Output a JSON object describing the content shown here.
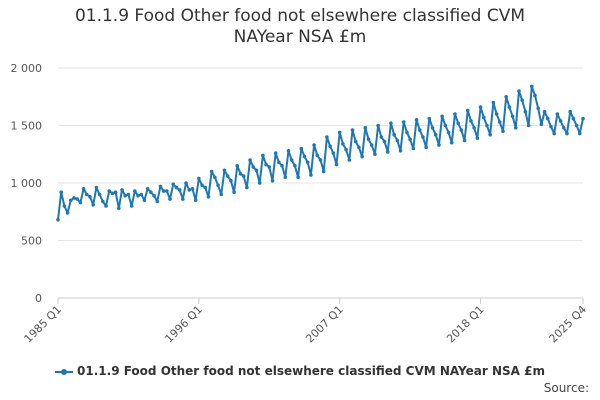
{
  "chart_data": {
    "type": "line",
    "title_line1": "01.1.9 Food Other food not elsewhere classified CVM",
    "title_line2": "NAYear NSA £m",
    "xlabel": "",
    "ylabel": "",
    "ylim": [
      0,
      2000
    ],
    "y_ticks": [
      "0",
      "500",
      "1 000",
      "1 500",
      "2 000"
    ],
    "x_tick_labels": [
      "1985 Q1",
      "1996 Q1",
      "2007 Q1",
      "2018 Q1",
      "2025 Q4"
    ],
    "grid": true,
    "legend_position": "bottom",
    "series": [
      {
        "name": "01.1.9 Food Other food not elsewhere classified CVM NAYear NSA £m",
        "color": "#1f77b4",
        "values": [
          680,
          920,
          800,
          740,
          850,
          870,
          860,
          830,
          950,
          900,
          880,
          810,
          960,
          900,
          840,
          800,
          930,
          910,
          920,
          780,
          940,
          890,
          900,
          800,
          930,
          890,
          900,
          850,
          950,
          920,
          890,
          840,
          970,
          930,
          930,
          860,
          990,
          960,
          940,
          860,
          1000,
          940,
          950,
          850,
          1040,
          980,
          960,
          880,
          1100,
          1050,
          980,
          900,
          1110,
          1060,
          1020,
          920,
          1150,
          1080,
          1060,
          960,
          1200,
          1140,
          1110,
          1000,
          1240,
          1160,
          1140,
          1020,
          1260,
          1180,
          1150,
          1050,
          1280,
          1200,
          1150,
          1050,
          1300,
          1230,
          1180,
          1070,
          1330,
          1240,
          1200,
          1100,
          1400,
          1320,
          1260,
          1160,
          1440,
          1340,
          1290,
          1200,
          1460,
          1360,
          1310,
          1230,
          1480,
          1380,
          1330,
          1250,
          1500,
          1400,
          1360,
          1270,
          1520,
          1420,
          1370,
          1280,
          1530,
          1440,
          1380,
          1300,
          1550,
          1460,
          1400,
          1310,
          1560,
          1480,
          1420,
          1330,
          1580,
          1500,
          1440,
          1350,
          1600,
          1520,
          1460,
          1370,
          1630,
          1540,
          1480,
          1390,
          1660,
          1570,
          1500,
          1420,
          1700,
          1600,
          1530,
          1450,
          1750,
          1660,
          1580,
          1480,
          1800,
          1720,
          1620,
          1500,
          1840,
          1760,
          1650,
          1510,
          1620,
          1560,
          1490,
          1430,
          1600,
          1540,
          1480,
          1430,
          1620,
          1560,
          1500,
          1430,
          1560
        ]
      }
    ]
  },
  "source_label": "Source:"
}
